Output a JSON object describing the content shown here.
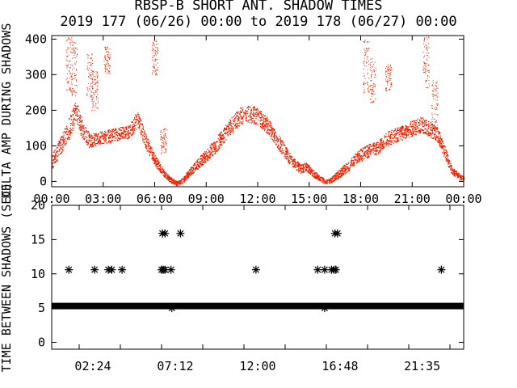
{
  "title_line1": "RBSP-B SHORT ANT. SHADOW TIMES",
  "title_line2": "2019 177 (06/26) 00:00 to 2019 178 (06/27) 00:00",
  "colors": {
    "amp_points": "#ee2200",
    "axes": "#000000",
    "gap_points": "#000000"
  },
  "chart_data": [
    {
      "type": "scatter",
      "title": "",
      "ylabel": "DELTA AMP DURING SHADOWS",
      "xlim": [
        0,
        24
      ],
      "ylim": [
        -15,
        410
      ],
      "x_ticks": [
        0,
        3,
        6,
        9,
        12,
        15,
        18,
        21,
        24
      ],
      "x_tick_labels": [
        "00:00",
        "03:00",
        "06:00",
        "09:00",
        "12:00",
        "15:00",
        "18:00",
        "21:00",
        "00:00"
      ],
      "y_ticks": [
        0,
        100,
        200,
        300,
        400
      ],
      "y_tick_labels": [
        "0",
        "100",
        "200",
        "300",
        "400"
      ],
      "envelope": {
        "x": [
          0.0,
          0.5,
          1.0,
          1.4,
          1.8,
          2.2,
          2.6,
          3.0,
          3.5,
          4.0,
          4.5,
          5.0,
          5.5,
          6.0,
          6.5,
          6.9,
          7.3,
          7.6,
          8.0,
          8.5,
          9.0,
          9.5,
          10.0,
          10.5,
          11.0,
          11.5,
          12.0,
          12.5,
          13.0,
          13.5,
          14.0,
          14.5,
          14.8,
          15.2,
          15.6,
          16.0,
          16.3,
          16.8,
          17.3,
          17.8,
          18.2,
          18.6,
          19.0,
          19.5,
          20.0,
          20.5,
          21.0,
          21.5,
          22.0,
          22.5,
          22.9,
          23.3,
          23.7,
          24.0
        ],
        "y": [
          55,
          100,
          150,
          200,
          140,
          115,
          120,
          125,
          130,
          135,
          140,
          175,
          110,
          60,
          25,
          5,
          -5,
          2,
          25,
          50,
          75,
          100,
          130,
          160,
          185,
          190,
          185,
          160,
          125,
          90,
          55,
          35,
          42,
          25,
          8,
          0,
          5,
          25,
          45,
          70,
          80,
          90,
          95,
          120,
          130,
          140,
          150,
          160,
          150,
          130,
          80,
          30,
          15,
          8
        ],
        "spread": [
          20,
          25,
          30,
          30,
          25,
          20,
          18,
          18,
          18,
          18,
          18,
          25,
          20,
          15,
          10,
          8,
          6,
          8,
          10,
          14,
          18,
          20,
          22,
          24,
          25,
          25,
          25,
          24,
          22,
          20,
          16,
          12,
          12,
          10,
          8,
          6,
          8,
          12,
          14,
          16,
          18,
          18,
          18,
          20,
          20,
          20,
          22,
          22,
          22,
          20,
          18,
          12,
          8,
          6
        ]
      },
      "outlier_columns": [
        {
          "x": 1.0,
          "y_min": 250,
          "y_max": 410
        },
        {
          "x": 1.3,
          "y_min": 240,
          "y_max": 395
        },
        {
          "x": 2.2,
          "y_min": 230,
          "y_max": 360
        },
        {
          "x": 2.5,
          "y_min": 200,
          "y_max": 310
        },
        {
          "x": 3.2,
          "y_min": 300,
          "y_max": 380
        },
        {
          "x": 6.0,
          "y_min": 300,
          "y_max": 400
        },
        {
          "x": 6.5,
          "y_min": 80,
          "y_max": 150
        },
        {
          "x": 18.3,
          "y_min": 250,
          "y_max": 400
        },
        {
          "x": 18.7,
          "y_min": 220,
          "y_max": 350
        },
        {
          "x": 19.6,
          "y_min": 250,
          "y_max": 330
        },
        {
          "x": 21.8,
          "y_min": 260,
          "y_max": 410
        },
        {
          "x": 22.3,
          "y_min": 150,
          "y_max": 300
        }
      ]
    },
    {
      "type": "scatter",
      "title": "",
      "ylabel": "TIME BETWEEN SHADOWS (SEC)",
      "xlim": [
        0,
        24
      ],
      "ylim": [
        -1,
        20
      ],
      "x_ticks": [
        1.6,
        4.0,
        6.4,
        8.8,
        11.2,
        13.6,
        16.0,
        18.4,
        20.8,
        23.2
      ],
      "x_labeled_ticks": [
        2.4,
        7.2,
        12.0,
        16.8,
        21.5833
      ],
      "x_tick_labels": [
        "02:24",
        "07:12",
        "12:00",
        "16:48",
        "21:35"
      ],
      "y_ticks": [
        0,
        5,
        10,
        15,
        20
      ],
      "y_tick_labels": [
        "0",
        "5",
        "10",
        "15",
        "20"
      ],
      "baseline": {
        "y": 5.3,
        "x_start": 0.0,
        "x_end": 24.0
      },
      "points": [
        {
          "x": 1.0,
          "y": 10.6
        },
        {
          "x": 2.5,
          "y": 10.6
        },
        {
          "x": 3.3,
          "y": 10.6
        },
        {
          "x": 3.5,
          "y": 10.6
        },
        {
          "x": 4.1,
          "y": 10.6
        },
        {
          "x": 6.4,
          "y": 10.6
        },
        {
          "x": 6.5,
          "y": 10.6
        },
        {
          "x": 6.6,
          "y": 10.6
        },
        {
          "x": 6.95,
          "y": 10.6
        },
        {
          "x": 6.45,
          "y": 15.9
        },
        {
          "x": 6.6,
          "y": 15.9
        },
        {
          "x": 7.5,
          "y": 15.9
        },
        {
          "x": 7.0,
          "y": 5.0
        },
        {
          "x": 11.9,
          "y": 10.6
        },
        {
          "x": 15.5,
          "y": 10.6
        },
        {
          "x": 15.9,
          "y": 10.6
        },
        {
          "x": 16.3,
          "y": 10.6
        },
        {
          "x": 16.45,
          "y": 10.6
        },
        {
          "x": 16.55,
          "y": 10.6
        },
        {
          "x": 16.5,
          "y": 15.9
        },
        {
          "x": 16.65,
          "y": 15.9
        },
        {
          "x": 15.9,
          "y": 5.0
        },
        {
          "x": 22.7,
          "y": 10.6
        }
      ]
    }
  ]
}
